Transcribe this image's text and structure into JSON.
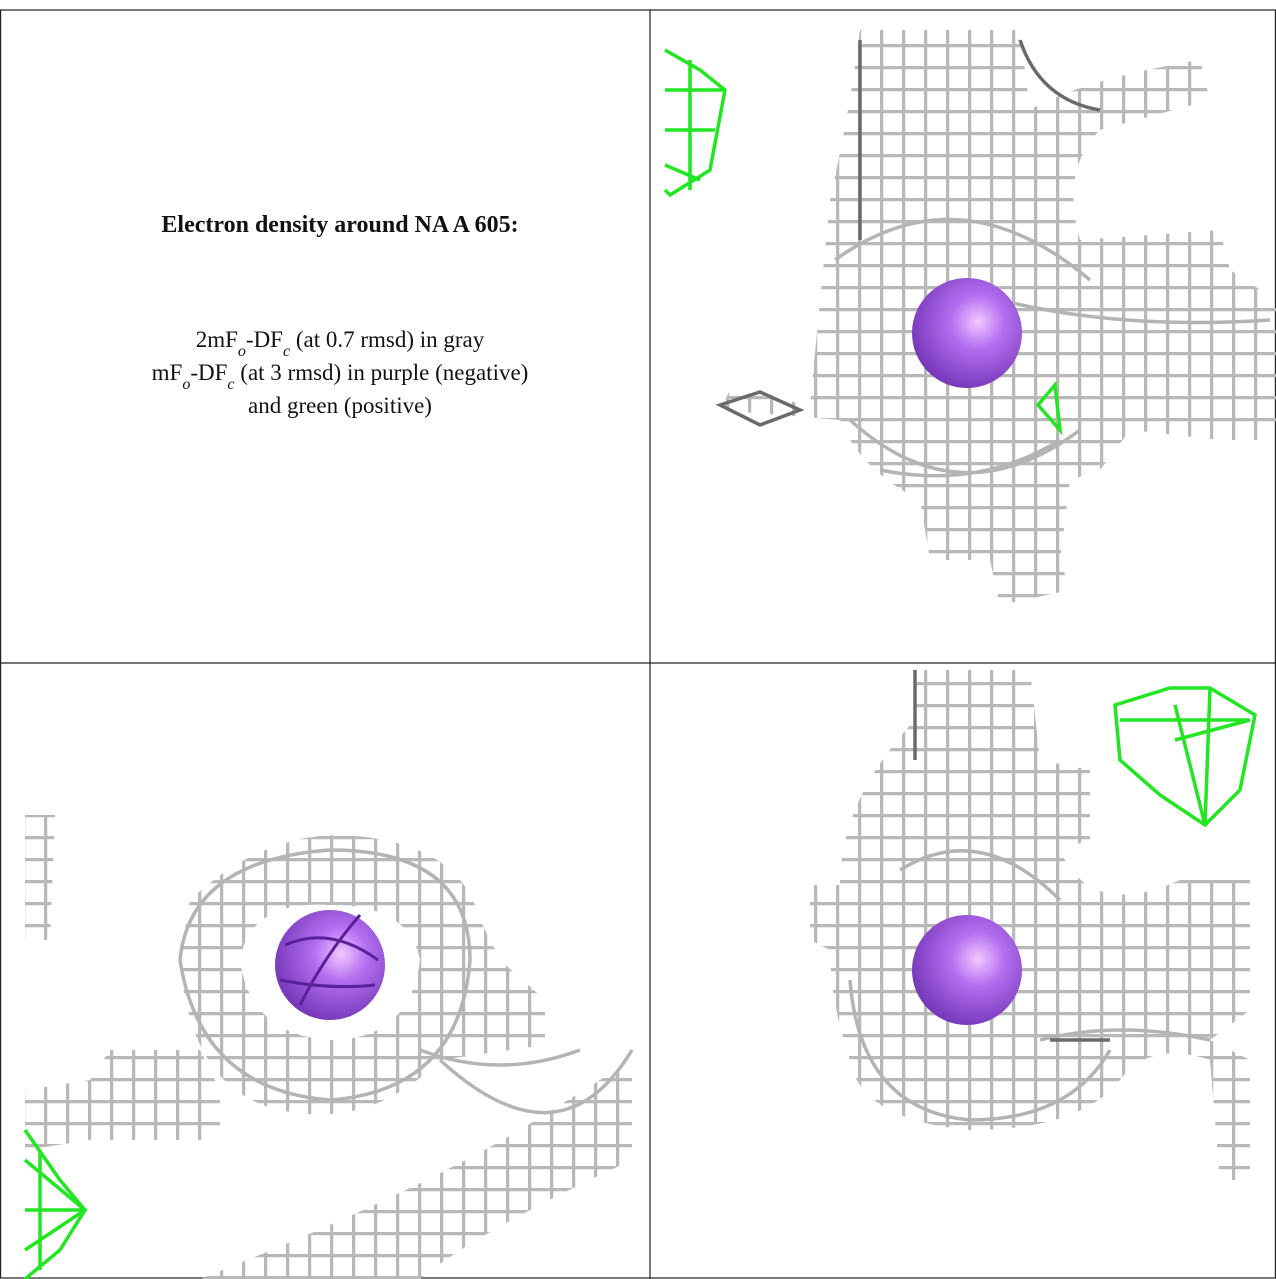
{
  "panel_text": {
    "title": "Electron density around NA A 605:",
    "lines": [
      [
        "2mF",
        "o",
        "-DF",
        "c",
        " (at 0.7 rmsd) in gray"
      ],
      [
        "mF",
        "o",
        "-DF",
        "c",
        " (at 3 rmsd) in purple (negative)"
      ],
      [
        "and green (positive)"
      ]
    ]
  }
}
